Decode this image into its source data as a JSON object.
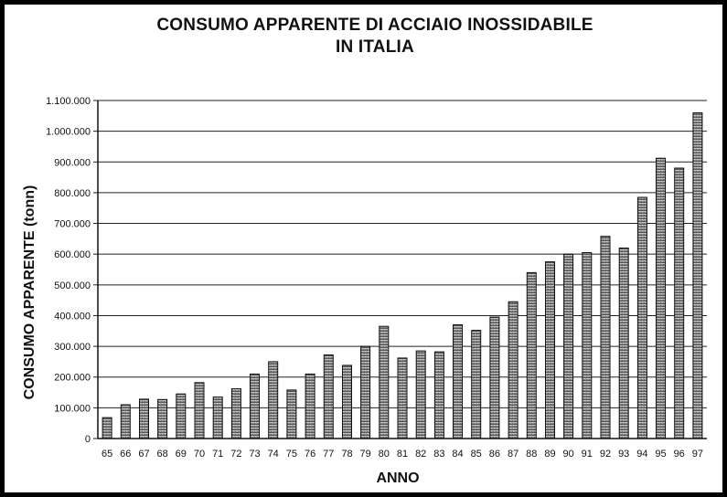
{
  "chart_data": {
    "type": "bar",
    "title_lines": [
      "CONSUMO APPARENTE DI ACCIAIO INOSSIDABILE",
      "IN ITALIA"
    ],
    "xlabel": "ANNO",
    "ylabel": "CONSUMO APPARENTE (tonn)",
    "ylim": [
      0,
      1100000
    ],
    "yticks": [
      0,
      100000,
      200000,
      300000,
      400000,
      500000,
      600000,
      700000,
      800000,
      900000,
      1000000,
      1100000
    ],
    "ytick_labels": [
      "0",
      "100.000",
      "200.000",
      "300.000",
      "400.000",
      "500.000",
      "600.000",
      "700.000",
      "800.000",
      "900.000",
      "1.000.000",
      "1.100.000"
    ],
    "grid": true,
    "categories": [
      "65",
      "66",
      "67",
      "68",
      "69",
      "70",
      "71",
      "72",
      "73",
      "74",
      "75",
      "76",
      "77",
      "78",
      "79",
      "80",
      "81",
      "82",
      "83",
      "84",
      "85",
      "86",
      "87",
      "88",
      "89",
      "90",
      "91",
      "92",
      "93",
      "94",
      "95",
      "96",
      "97"
    ],
    "values": [
      68000,
      110000,
      128000,
      127000,
      145000,
      182000,
      135000,
      162000,
      210000,
      250000,
      158000,
      210000,
      272000,
      238000,
      300000,
      365000,
      262000,
      285000,
      282000,
      370000,
      352000,
      395000,
      445000,
      540000,
      575000,
      600000,
      605000,
      658000,
      620000,
      785000,
      912000,
      880000,
      1060000
    ]
  }
}
